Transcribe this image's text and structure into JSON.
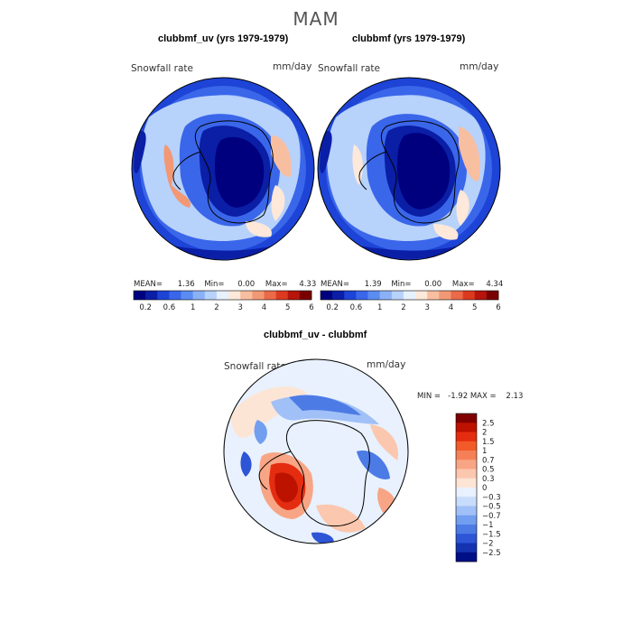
{
  "figure": {
    "season": "MAM"
  },
  "panels": [
    {
      "title": "clubbmf_uv (yrs 1979-1979)",
      "field_label": "Snowfall rate",
      "units": "mm/day",
      "stats": {
        "mean_label": "MEAN=",
        "mean": "1.36",
        "min_label": "Min=",
        "min": "0.00",
        "max_label": "Max=",
        "max": "4.33"
      }
    },
    {
      "title": "clubbmf (yrs 1979-1979)",
      "field_label": "Snowfall rate",
      "units": "mm/day",
      "stats": {
        "mean_label": "MEAN=",
        "mean": "1.39",
        "min_label": "Min=",
        "min": "0.00",
        "max_label": "Max=",
        "max": "4.34"
      }
    }
  ],
  "diff_panel": {
    "title": "clubbmf_uv - clubbmf",
    "field_label": "Snowfall rate",
    "units": "mm/day",
    "stats_text": "MIN =   -1.92 MAX =    2.13"
  },
  "colorbar_main": {
    "colors": [
      "#00007f",
      "#0a1ea6",
      "#1d44d6",
      "#3a66ea",
      "#5a8cf2",
      "#8ab1f7",
      "#b7d2fb",
      "#e6f1fe",
      "#fde8d9",
      "#f8bea0",
      "#f29874",
      "#ea6a49",
      "#dc3a1f",
      "#b5150b",
      "#7a0000"
    ],
    "labels": [
      "0.2",
      "0.6",
      "1",
      "2",
      "3",
      "4",
      "5",
      "6"
    ]
  },
  "colorbar_diff": {
    "colors": [
      "#7f0000",
      "#bd1200",
      "#e42d10",
      "#f25a2a",
      "#f58058",
      "#f8a585",
      "#fbc7ae",
      "#fde5d6",
      "#e8f1fd",
      "#c8dcfb",
      "#a0c0f7",
      "#729ef0",
      "#4d7be6",
      "#2d55d6",
      "#1533b0",
      "#000f85"
    ],
    "labels": [
      "2.5",
      "2",
      "1.5",
      "1",
      "0.7",
      "0.5",
      "0.3",
      "0",
      "−0.3",
      "−0.5",
      "−0.7",
      "−1",
      "−1.5",
      "−2",
      "−2.5"
    ]
  }
}
